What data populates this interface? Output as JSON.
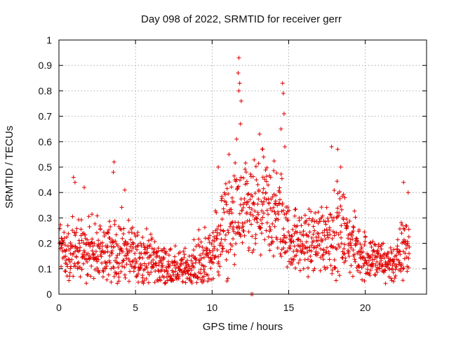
{
  "chart_data": {
    "type": "scatter",
    "title": "Day 098 of 2022, SRMTID for receiver gerr",
    "xlabel": "GPS time / hours",
    "ylabel": "SRMTID / TECUs",
    "xlim": [
      0,
      24
    ],
    "ylim": [
      0,
      1
    ],
    "x_ticks": [
      0,
      5,
      10,
      15,
      20
    ],
    "x_tick_labels": [
      "0",
      "5",
      "10",
      "15",
      "20"
    ],
    "y_ticks": [
      0,
      0.1,
      0.2,
      0.3,
      0.4,
      0.5,
      0.6,
      0.7,
      0.8,
      0.9,
      1
    ],
    "y_tick_labels": [
      "0",
      "0.1",
      "0.2",
      "0.3",
      "0.4",
      "0.5",
      "0.6",
      "0.7",
      "0.8",
      "0.9",
      "1"
    ],
    "grid": true,
    "marker": "+",
    "marker_color": "#e00000",
    "series": [
      {
        "name": "SRMTID",
        "envelope_hours": [
          0,
          0.5,
          1,
          2,
          3,
          4,
          5,
          6,
          7,
          8,
          9,
          10,
          10.5,
          11,
          11.5,
          12,
          12.5,
          13,
          13.5,
          14,
          14.5,
          15,
          16,
          17,
          18,
          18.5,
          19,
          20,
          21,
          22,
          22.5,
          23
        ],
        "envelope_mean": [
          0.2,
          0.15,
          0.16,
          0.17,
          0.16,
          0.16,
          0.15,
          0.14,
          0.1,
          0.09,
          0.12,
          0.15,
          0.22,
          0.27,
          0.3,
          0.3,
          0.3,
          0.32,
          0.34,
          0.32,
          0.3,
          0.22,
          0.2,
          0.22,
          0.25,
          0.25,
          0.2,
          0.15,
          0.13,
          0.12,
          0.18,
          0.2
        ],
        "envelope_spread": [
          0.05,
          0.05,
          0.07,
          0.07,
          0.06,
          0.07,
          0.05,
          0.05,
          0.04,
          0.04,
          0.05,
          0.06,
          0.08,
          0.1,
          0.1,
          0.1,
          0.1,
          0.09,
          0.1,
          0.1,
          0.09,
          0.06,
          0.06,
          0.07,
          0.08,
          0.08,
          0.06,
          0.05,
          0.04,
          0.04,
          0.07,
          0.06
        ],
        "peaks": [
          {
            "x": 0.95,
            "y": 0.46
          },
          {
            "x": 1.05,
            "y": 0.44
          },
          {
            "x": 1.65,
            "y": 0.42
          },
          {
            "x": 3.6,
            "y": 0.52
          },
          {
            "x": 3.55,
            "y": 0.48
          },
          {
            "x": 4.3,
            "y": 0.41
          },
          {
            "x": 11.75,
            "y": 0.93
          },
          {
            "x": 11.7,
            "y": 0.87
          },
          {
            "x": 11.8,
            "y": 0.83
          },
          {
            "x": 11.75,
            "y": 0.8
          },
          {
            "x": 11.9,
            "y": 0.76
          },
          {
            "x": 11.85,
            "y": 0.67
          },
          {
            "x": 11.6,
            "y": 0.61
          },
          {
            "x": 13.1,
            "y": 0.63
          },
          {
            "x": 13.3,
            "y": 0.57
          },
          {
            "x": 14.6,
            "y": 0.83
          },
          {
            "x": 14.65,
            "y": 0.79
          },
          {
            "x": 14.7,
            "y": 0.71
          },
          {
            "x": 14.5,
            "y": 0.65
          },
          {
            "x": 14.75,
            "y": 0.58
          },
          {
            "x": 10.4,
            "y": 0.5
          },
          {
            "x": 11.1,
            "y": 0.55
          },
          {
            "x": 17.8,
            "y": 0.58
          },
          {
            "x": 18.2,
            "y": 0.57
          },
          {
            "x": 18.4,
            "y": 0.5
          },
          {
            "x": 22.5,
            "y": 0.44
          },
          {
            "x": 22.8,
            "y": 0.4
          },
          {
            "x": 12.55,
            "y": 0.0
          },
          {
            "x": 12.65,
            "y": 0.0
          }
        ]
      }
    ]
  }
}
